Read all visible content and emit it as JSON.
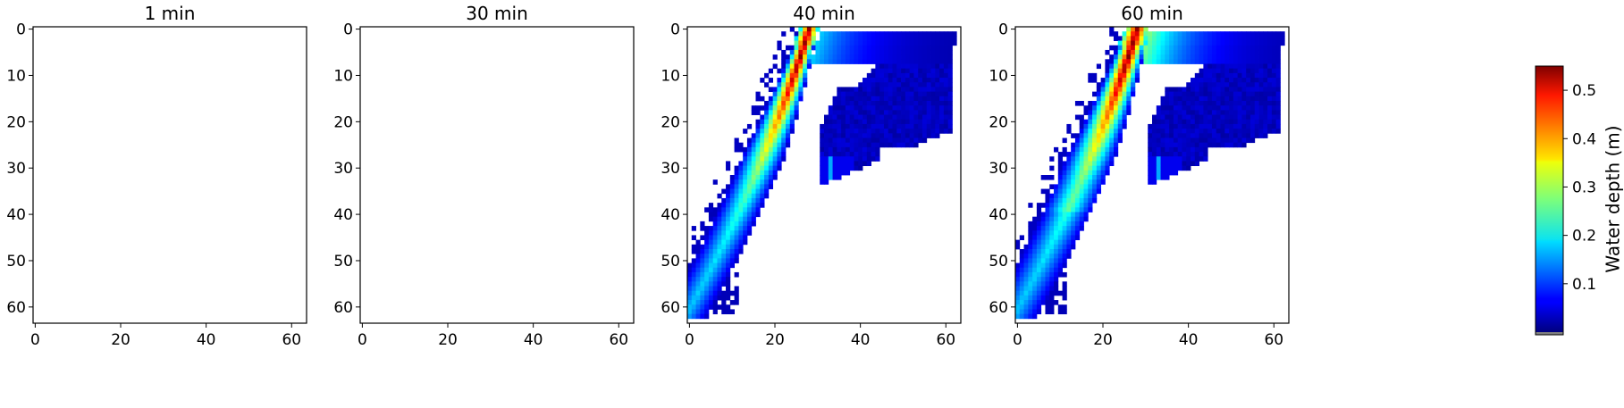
{
  "figure": {
    "colorbar": {
      "label": "Water depth (m)",
      "ticks": [
        0.1,
        0.2,
        0.3,
        0.4,
        0.5
      ],
      "tick_labels": [
        "0.1",
        "0.2",
        "0.3",
        "0.4",
        "0.5"
      ],
      "vmin": 0.0,
      "vmax": 0.55,
      "colormap": "jet"
    }
  },
  "chart_data": [
    {
      "type": "heatmap",
      "title": "1 min",
      "xlim": [
        0,
        63
      ],
      "ylim": [
        63,
        0
      ],
      "x_ticks": [
        0,
        20,
        40,
        60
      ],
      "x_tick_labels": [
        "0",
        "20",
        "40",
        "60"
      ],
      "y_ticks": [
        0,
        10,
        20,
        30,
        40,
        50,
        60
      ],
      "y_tick_labels": [
        "0",
        "10",
        "20",
        "30",
        "40",
        "50",
        "60"
      ],
      "grid": false,
      "flooded": false
    },
    {
      "type": "heatmap",
      "title": "30 min",
      "xlim": [
        0,
        63
      ],
      "ylim": [
        63,
        0
      ],
      "x_ticks": [
        0,
        20,
        40,
        60
      ],
      "x_tick_labels": [
        "0",
        "20",
        "40",
        "60"
      ],
      "y_ticks": [
        0,
        10,
        20,
        30,
        40,
        50,
        60
      ],
      "y_tick_labels": [
        "0",
        "10",
        "20",
        "30",
        "40",
        "50",
        "60"
      ],
      "grid": false,
      "flooded": false
    },
    {
      "type": "heatmap",
      "title": "40 min",
      "xlim": [
        0,
        63
      ],
      "ylim": [
        63,
        0
      ],
      "x_ticks": [
        0,
        20,
        40,
        60
      ],
      "x_tick_labels": [
        "0",
        "20",
        "40",
        "60"
      ],
      "y_ticks": [
        0,
        10,
        20,
        30,
        40,
        50,
        60
      ],
      "y_tick_labels": [
        "0",
        "10",
        "20",
        "30",
        "40",
        "50",
        "60"
      ],
      "grid": false,
      "flooded": true,
      "peak_depth_m": 0.55
    },
    {
      "type": "heatmap",
      "title": "60 min",
      "xlim": [
        0,
        63
      ],
      "ylim": [
        63,
        0
      ],
      "x_ticks": [
        0,
        20,
        40,
        60
      ],
      "x_tick_labels": [
        "0",
        "20",
        "40",
        "60"
      ],
      "y_ticks": [
        0,
        10,
        20,
        30,
        40,
        50,
        60
      ],
      "y_tick_labels": [
        "0",
        "10",
        "20",
        "30",
        "40",
        "50",
        "60"
      ],
      "grid": false,
      "flooded": true,
      "peak_depth_m": 0.55
    }
  ]
}
